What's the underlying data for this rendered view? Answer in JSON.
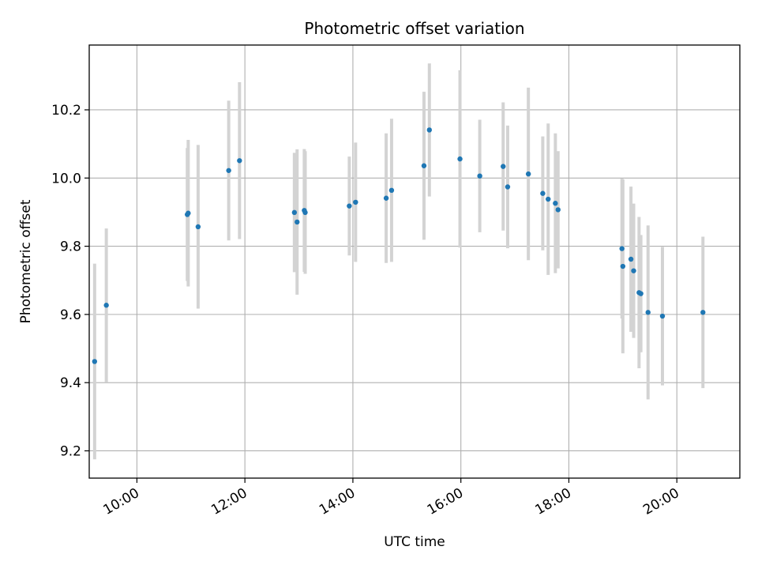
{
  "chart_data": {
    "type": "scatter",
    "title": "Photometric offset variation",
    "xlabel": "UTC time",
    "ylabel": "Photometric offset",
    "xlim": [
      "09:07",
      "21:10"
    ],
    "ylim": [
      9.12,
      10.39
    ],
    "x_ticks": [
      "10:00",
      "12:00",
      "14:00",
      "16:00",
      "18:00",
      "20:00"
    ],
    "y_ticks": [
      "9.2",
      "9.4",
      "9.6",
      "9.8",
      "10.0",
      "10.2"
    ],
    "grid": true,
    "colors": {
      "point": "#1f77b4",
      "errorbar": "#d3d3d3",
      "grid": "#b0b0b0"
    },
    "points": [
      {
        "x": "09:13",
        "y": 9.462,
        "err": 0.287
      },
      {
        "x": "09:26",
        "y": 9.627,
        "err": 0.225
      },
      {
        "x": "10:56",
        "y": 9.893,
        "err": 0.195
      },
      {
        "x": "10:57",
        "y": 9.897,
        "err": 0.215
      },
      {
        "x": "11:08",
        "y": 9.857,
        "err": 0.24
      },
      {
        "x": "11:42",
        "y": 10.022,
        "err": 0.205
      },
      {
        "x": "11:54",
        "y": 10.051,
        "err": 0.23
      },
      {
        "x": "12:55",
        "y": 9.899,
        "err": 0.175
      },
      {
        "x": "12:58",
        "y": 9.871,
        "err": 0.213
      },
      {
        "x": "13:06",
        "y": 9.905,
        "err": 0.18
      },
      {
        "x": "13:07",
        "y": 9.899,
        "err": 0.18
      },
      {
        "x": "13:56",
        "y": 9.918,
        "err": 0.145
      },
      {
        "x": "14:03",
        "y": 9.929,
        "err": 0.175
      },
      {
        "x": "14:37",
        "y": 9.941,
        "err": 0.19
      },
      {
        "x": "14:43",
        "y": 9.964,
        "err": 0.21
      },
      {
        "x": "15:19",
        "y": 10.036,
        "err": 0.217
      },
      {
        "x": "15:25",
        "y": 10.141,
        "err": 0.195
      },
      {
        "x": "15:59",
        "y": 10.056,
        "err": 0.26
      },
      {
        "x": "16:21",
        "y": 10.006,
        "err": 0.165
      },
      {
        "x": "16:47",
        "y": 10.034,
        "err": 0.188
      },
      {
        "x": "16:52",
        "y": 9.974,
        "err": 0.18
      },
      {
        "x": "17:15",
        "y": 10.012,
        "err": 0.253
      },
      {
        "x": "17:31",
        "y": 9.955,
        "err": 0.167
      },
      {
        "x": "17:37",
        "y": 9.938,
        "err": 0.222
      },
      {
        "x": "17:45",
        "y": 9.926,
        "err": 0.205
      },
      {
        "x": "17:48",
        "y": 9.907,
        "err": 0.172
      },
      {
        "x": "18:59",
        "y": 9.793,
        "err": 0.205
      },
      {
        "x": "19:00",
        "y": 9.741,
        "err": 0.255
      },
      {
        "x": "19:09",
        "y": 9.762,
        "err": 0.213
      },
      {
        "x": "19:12",
        "y": 9.728,
        "err": 0.197
      },
      {
        "x": "19:18",
        "y": 9.664,
        "err": 0.222
      },
      {
        "x": "19:20",
        "y": 9.661,
        "err": 0.172
      },
      {
        "x": "19:28",
        "y": 9.606,
        "err": 0.255
      },
      {
        "x": "19:44",
        "y": 9.595,
        "err": 0.203
      },
      {
        "x": "20:29",
        "y": 9.606,
        "err": 0.222
      }
    ]
  }
}
